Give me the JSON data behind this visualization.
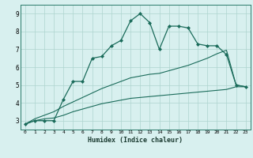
{
  "xlabel": "Humidex (Indice chaleur)",
  "x_values": [
    0,
    1,
    2,
    3,
    4,
    5,
    6,
    7,
    8,
    9,
    10,
    11,
    12,
    13,
    14,
    15,
    16,
    17,
    18,
    19,
    20,
    21,
    22,
    23
  ],
  "line1_y": [
    2.8,
    3.0,
    3.0,
    3.0,
    4.2,
    5.2,
    5.2,
    6.5,
    6.6,
    7.2,
    7.5,
    8.6,
    9.0,
    8.5,
    7.0,
    8.3,
    8.3,
    8.2,
    7.3,
    7.2,
    7.2,
    6.7,
    5.0,
    4.9
  ],
  "line2_y": [
    2.8,
    3.0,
    3.1,
    3.15,
    3.3,
    3.5,
    3.65,
    3.8,
    3.95,
    4.05,
    4.15,
    4.25,
    4.3,
    4.35,
    4.4,
    4.45,
    4.5,
    4.55,
    4.6,
    4.65,
    4.7,
    4.75,
    4.9,
    4.9
  ],
  "line3_y": [
    2.8,
    3.1,
    3.3,
    3.5,
    3.8,
    4.05,
    4.3,
    4.55,
    4.8,
    5.0,
    5.2,
    5.4,
    5.5,
    5.6,
    5.65,
    5.8,
    5.95,
    6.1,
    6.3,
    6.5,
    6.75,
    6.95,
    5.0,
    4.9
  ],
  "line_color": "#1a6b5a",
  "bg_color": "#d8f0ef",
  "grid_color": "#aed4cf",
  "ylim": [
    2.5,
    9.5
  ],
  "xlim": [
    -0.5,
    23.5
  ],
  "yticks": [
    3,
    4,
    5,
    6,
    7,
    8,
    9
  ]
}
